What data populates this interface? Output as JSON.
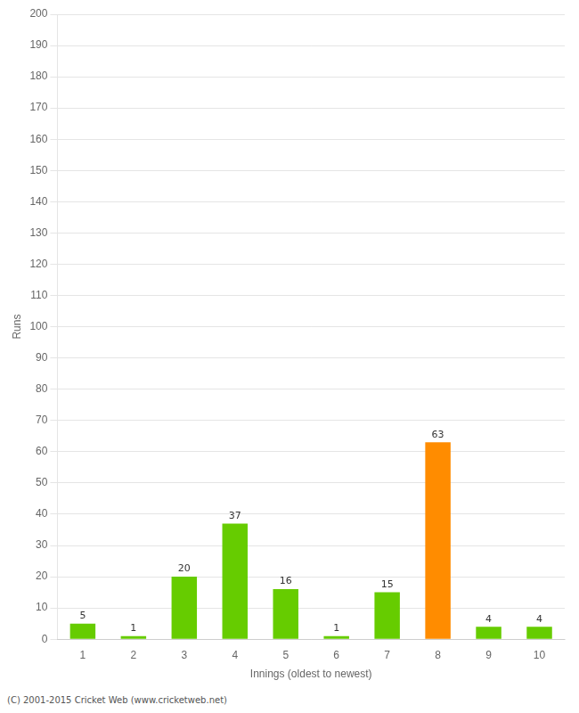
{
  "chart_data": {
    "type": "bar",
    "xlabel": "Innings (oldest to newest)",
    "ylabel": "Runs",
    "categories": [
      "1",
      "2",
      "3",
      "4",
      "5",
      "6",
      "7",
      "8",
      "9",
      "10"
    ],
    "values": [
      5,
      1,
      20,
      37,
      16,
      1,
      15,
      63,
      4,
      4
    ],
    "colors": [
      "#66cc00",
      "#66cc00",
      "#66cc00",
      "#66cc00",
      "#66cc00",
      "#66cc00",
      "#66cc00",
      "#ff8c00",
      "#66cc00",
      "#66cc00"
    ],
    "ylim": [
      0,
      200
    ],
    "yticks": [
      0,
      10,
      20,
      30,
      40,
      50,
      60,
      70,
      80,
      90,
      100,
      110,
      120,
      130,
      140,
      150,
      160,
      170,
      180,
      190,
      200
    ],
    "grid": true,
    "data_labels": true,
    "annotations": [
      "(C) 2001-2015 Cricket Web (www.cricketweb.net)"
    ]
  }
}
